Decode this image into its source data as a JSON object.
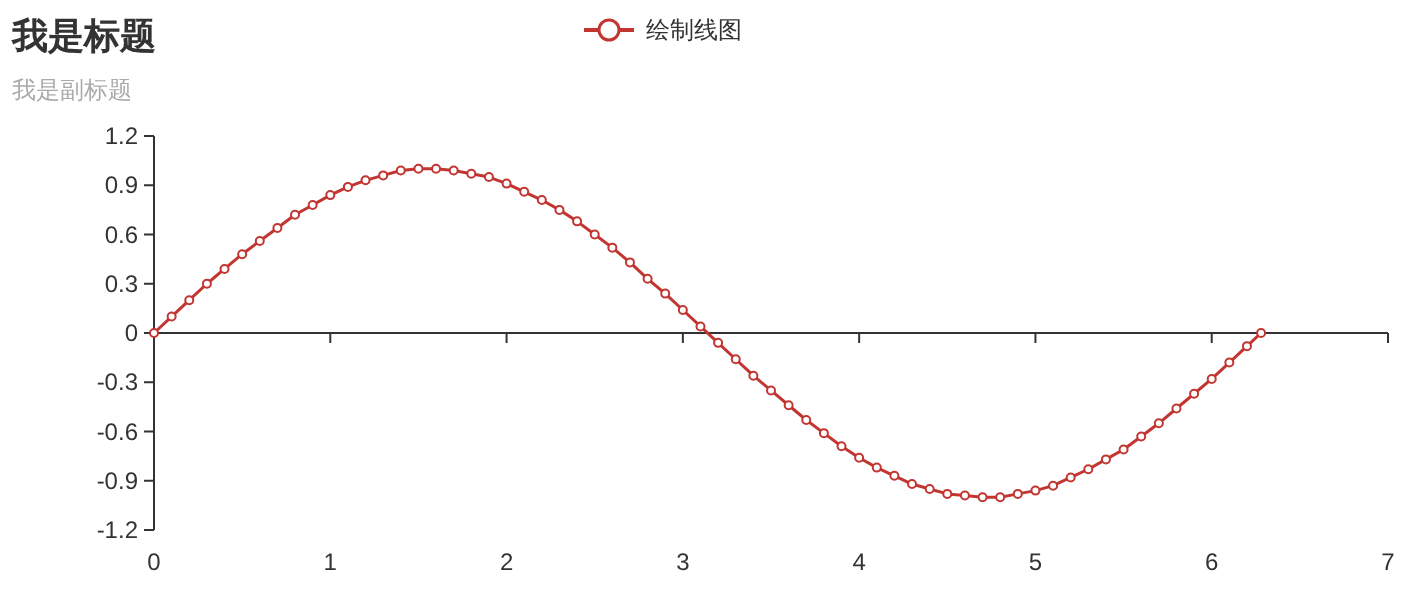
{
  "chart_data": {
    "type": "line",
    "title": "我是标题",
    "subtitle": "我是副标题",
    "x": [
      0,
      0.1,
      0.2,
      0.3,
      0.4,
      0.5,
      0.6,
      0.7,
      0.8,
      0.9,
      1.0,
      1.1,
      1.2,
      1.3,
      1.4,
      1.5,
      1.6,
      1.7,
      1.8,
      1.9,
      2.0,
      2.1,
      2.2,
      2.3,
      2.4,
      2.5,
      2.6,
      2.7,
      2.8,
      2.9,
      3.0,
      3.1,
      3.2,
      3.3,
      3.4,
      3.5,
      3.6,
      3.7,
      3.8,
      3.9,
      4.0,
      4.1,
      4.2,
      4.3,
      4.4,
      4.5,
      4.6,
      4.7,
      4.8,
      4.9,
      5.0,
      5.1,
      5.2,
      5.3,
      5.4,
      5.5,
      5.6,
      5.7,
      5.8,
      5.9,
      6.0,
      6.1,
      6.2,
      6.28
    ],
    "series": [
      {
        "name": "绘制线图",
        "color": "#c23531",
        "values": [
          0,
          0.1,
          0.2,
          0.3,
          0.39,
          0.48,
          0.56,
          0.64,
          0.72,
          0.78,
          0.84,
          0.89,
          0.93,
          0.96,
          0.99,
          1.0,
          1.0,
          0.99,
          0.97,
          0.95,
          0.91,
          0.86,
          0.81,
          0.75,
          0.68,
          0.6,
          0.52,
          0.43,
          0.33,
          0.24,
          0.14,
          0.04,
          -0.06,
          -0.16,
          -0.26,
          -0.35,
          -0.44,
          -0.53,
          -0.61,
          -0.69,
          -0.76,
          -0.82,
          -0.87,
          -0.92,
          -0.95,
          -0.98,
          -0.99,
          -1.0,
          -1.0,
          -0.98,
          -0.96,
          -0.93,
          -0.88,
          -0.83,
          -0.77,
          -0.71,
          -0.63,
          -0.55,
          -0.46,
          -0.37,
          -0.28,
          -0.18,
          -0.08,
          0
        ]
      }
    ],
    "xlim": [
      0,
      7
    ],
    "xticks": [
      0,
      1,
      2,
      3,
      4,
      5,
      6,
      7
    ],
    "ylim": [
      -1.2,
      1.2
    ],
    "yticks": [
      -1.2,
      -0.9,
      -0.6,
      -0.3,
      0,
      0.3,
      0.6,
      0.9,
      1.2
    ],
    "marker": "circle",
    "legend": "top"
  }
}
